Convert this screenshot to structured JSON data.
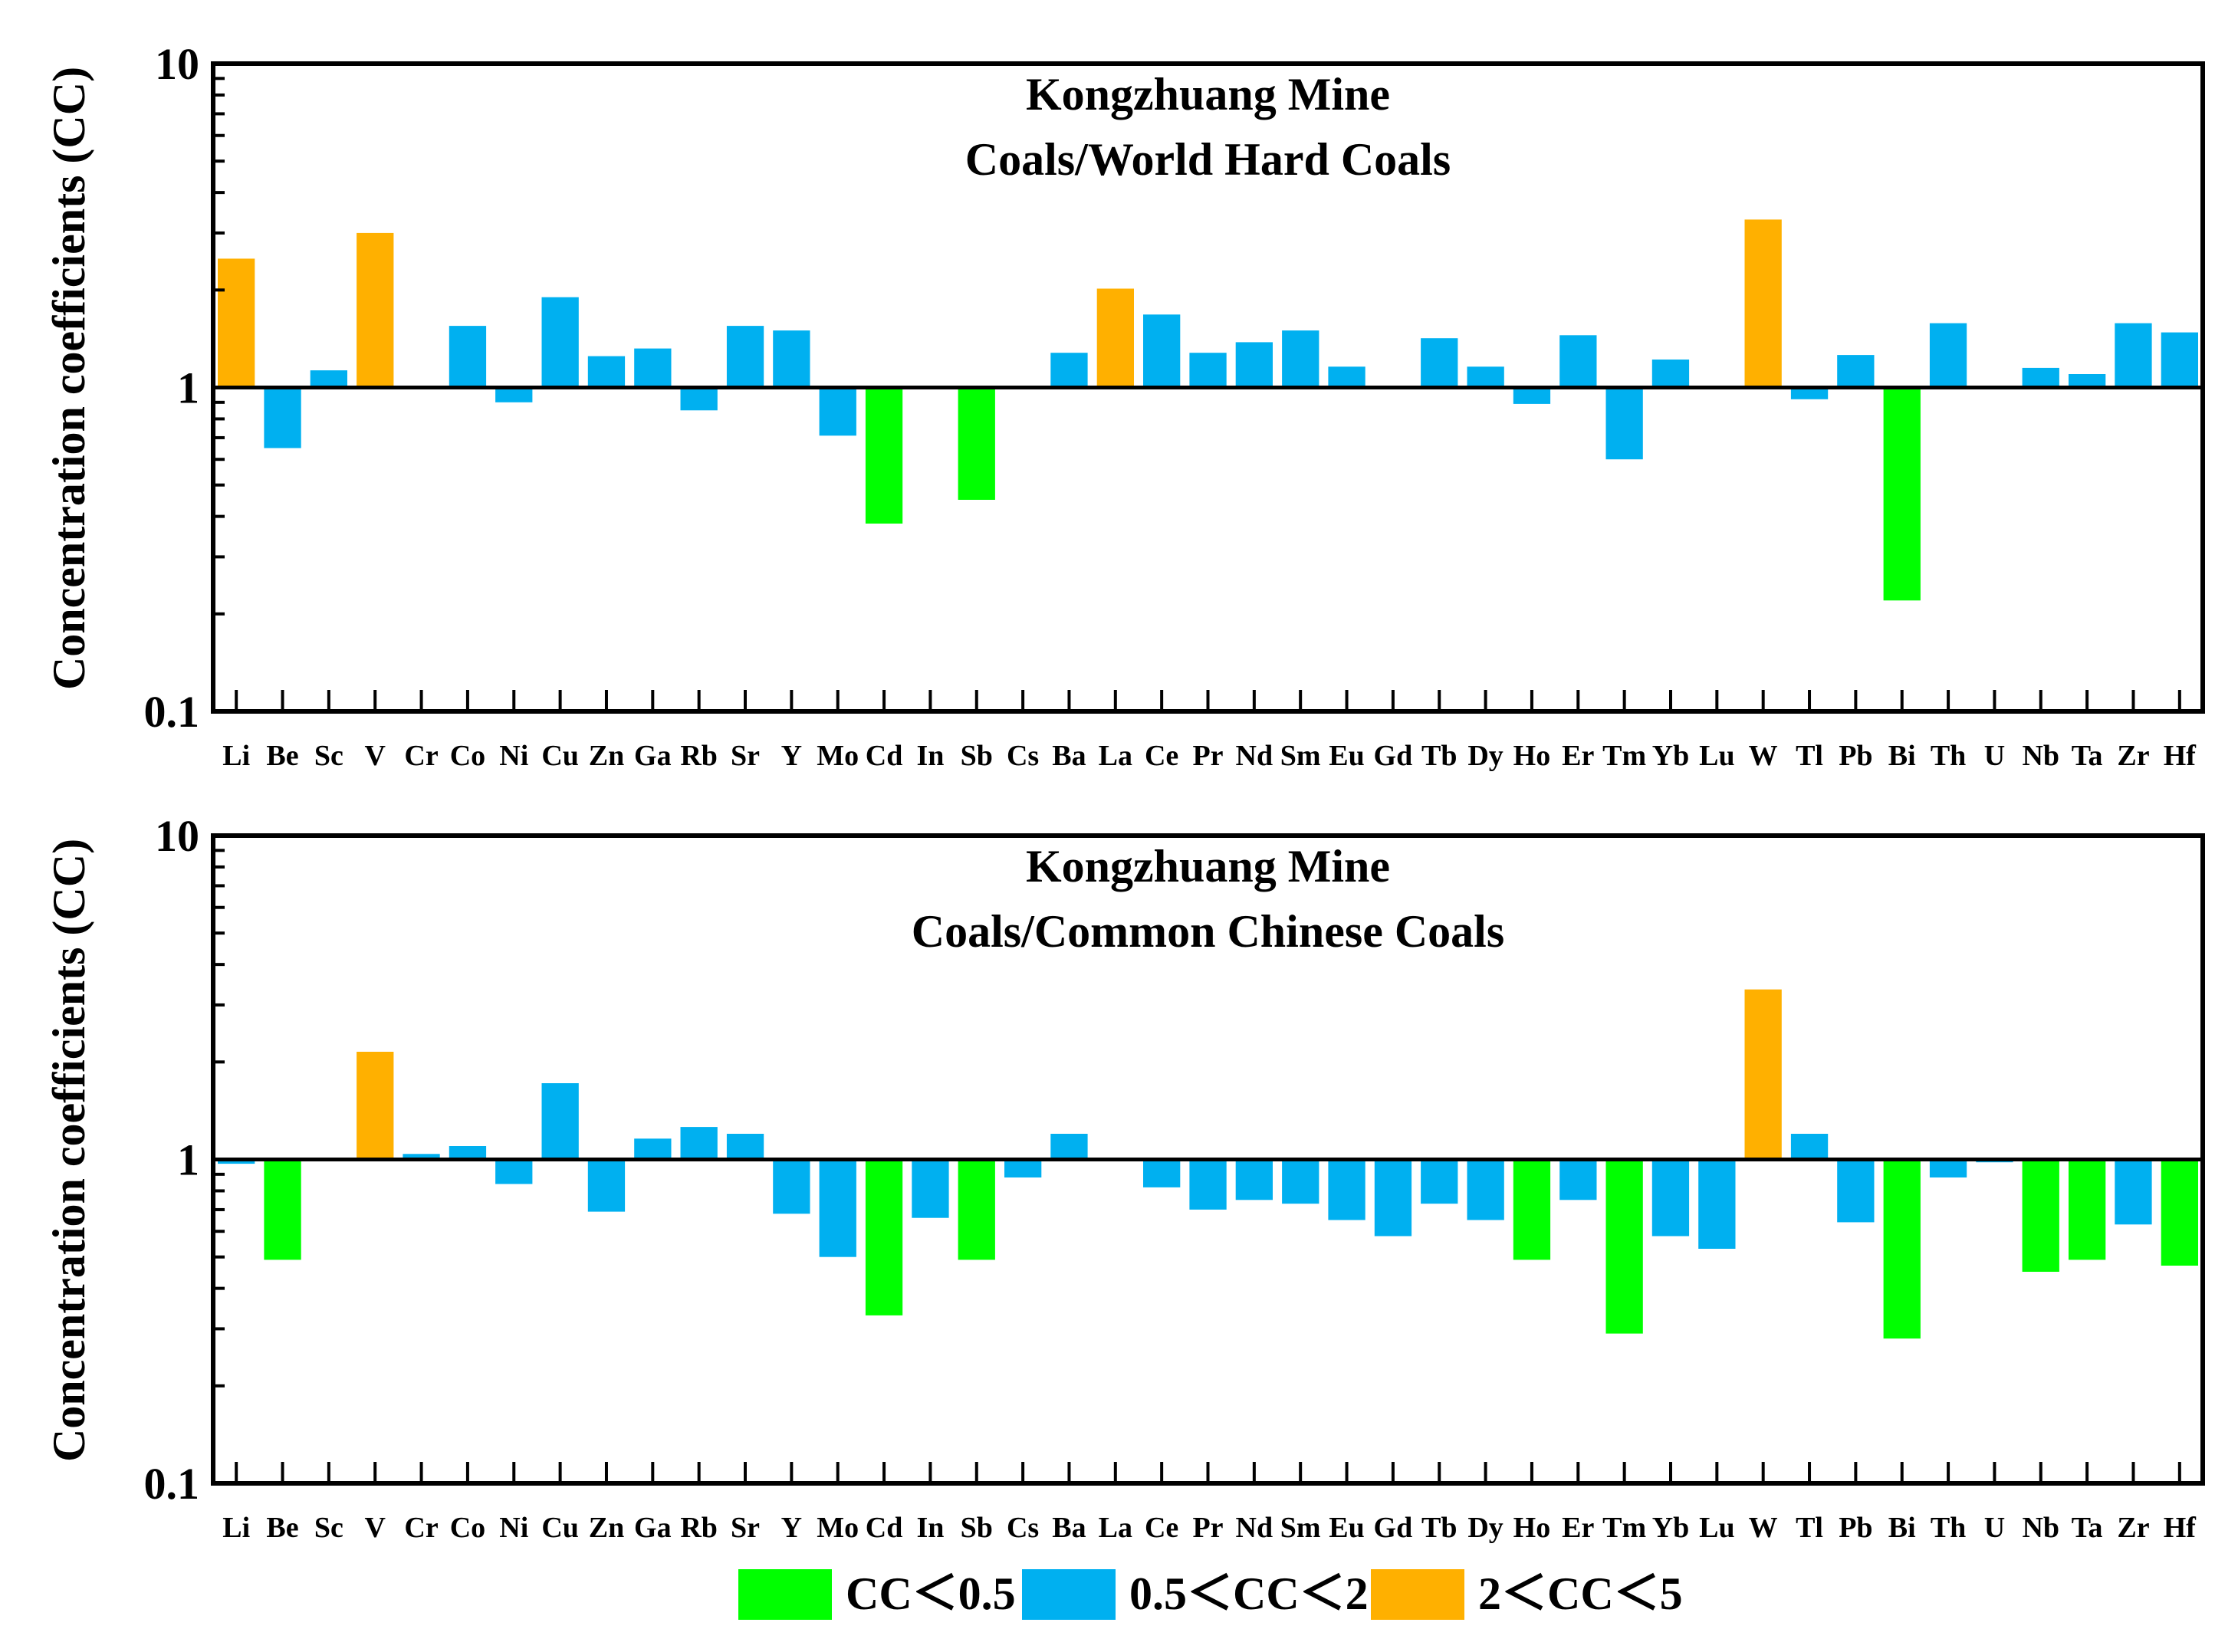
{
  "colors": {
    "low": "#00ff00",
    "mid": "#00b0f0",
    "high": "#ffb000",
    "axis": "#000000"
  },
  "legend": [
    {
      "key": "low",
      "label": "CC＜0.5"
    },
    {
      "key": "mid",
      "label": "0.5＜CC＜2"
    },
    {
      "key": "high",
      "label": "2＜CC＜5"
    }
  ],
  "chart_data": [
    {
      "type": "bar",
      "title_line1": "Kongzhuang Mine",
      "title_line2": "Coals/World Hard Coals",
      "ylabel": "Concentration coefficients (CC)",
      "yscale": "log",
      "ylim": [
        0.1,
        10
      ],
      "yticks": [
        "0.1",
        "1",
        "10"
      ],
      "baseline": 1,
      "categories": [
        "Li",
        "Be",
        "Sc",
        "V",
        "Cr",
        "Co",
        "Ni",
        "Cu",
        "Zn",
        "Ga",
        "Rb",
        "Sr",
        "Y",
        "Mo",
        "Cd",
        "In",
        "Sb",
        "Cs",
        "Ba",
        "La",
        "Ce",
        "Pr",
        "Nd",
        "Sm",
        "Eu",
        "Gd",
        "Tb",
        "Dy",
        "Ho",
        "Er",
        "Tm",
        "Yb",
        "Lu",
        "W",
        "Tl",
        "Pb",
        "Bi",
        "Th",
        "U",
        "Nb",
        "Ta",
        "Zr",
        "Hf"
      ],
      "values": [
        2.5,
        0.65,
        1.13,
        3.0,
        1.0,
        1.55,
        0.9,
        1.9,
        1.25,
        1.32,
        0.85,
        1.55,
        1.5,
        0.71,
        0.38,
        1.0,
        0.45,
        1.0,
        1.28,
        2.02,
        1.68,
        1.28,
        1.38,
        1.5,
        1.16,
        1.0,
        1.42,
        1.16,
        0.89,
        1.45,
        0.6,
        1.22,
        1.0,
        3.3,
        0.92,
        1.26,
        0.22,
        1.58,
        1.0,
        1.15,
        1.1,
        1.58,
        1.48
      ]
    },
    {
      "type": "bar",
      "title_line1": "Kongzhuang Mine",
      "title_line2": "Coals/Common Chinese Coals",
      "ylabel": "Concentration coefficients (CC)",
      "yscale": "log",
      "ylim": [
        0.1,
        10
      ],
      "yticks": [
        "0.1",
        "1",
        "10"
      ],
      "baseline": 1,
      "categories": [
        "Li",
        "Be",
        "Sc",
        "V",
        "Cr",
        "Co",
        "Ni",
        "Cu",
        "Zn",
        "Ga",
        "Rb",
        "Sr",
        "Y",
        "Mo",
        "Cd",
        "In",
        "Sb",
        "Cs",
        "Ba",
        "La",
        "Ce",
        "Pr",
        "Nd",
        "Sm",
        "Eu",
        "Gd",
        "Tb",
        "Dy",
        "Ho",
        "Er",
        "Tm",
        "Yb",
        "Lu",
        "W",
        "Tl",
        "Pb",
        "Bi",
        "Th",
        "U",
        "Nb",
        "Ta",
        "Zr",
        "Hf"
      ],
      "values": [
        0.97,
        0.49,
        1.0,
        2.15,
        1.04,
        1.1,
        0.84,
        1.72,
        0.69,
        1.16,
        1.26,
        1.2,
        0.68,
        0.5,
        0.33,
        0.66,
        0.49,
        0.88,
        1.2,
        1.0,
        0.82,
        0.7,
        0.75,
        0.73,
        0.65,
        0.58,
        0.73,
        0.65,
        0.49,
        0.75,
        0.29,
        0.58,
        0.53,
        3.35,
        1.2,
        0.64,
        0.28,
        0.88,
        0.98,
        0.45,
        0.49,
        0.63,
        0.47
      ]
    }
  ]
}
